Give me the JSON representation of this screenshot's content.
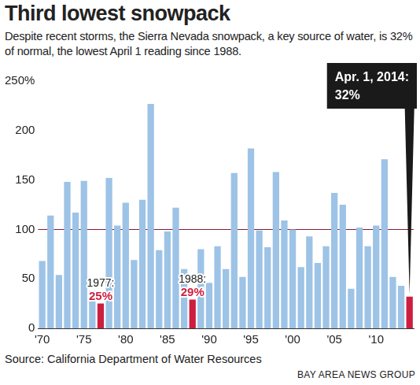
{
  "chart_data": {
    "type": "bar",
    "title": "Third lowest snowpack",
    "subtitle": "Despite recent storms, the Sierra Nevada snowpack, a key source of water, is 32% of normal, the lowest April 1 reading since 1988.",
    "source": "Source: California Department of Water Resources",
    "credit": "BAY AREA NEWS GROUP",
    "x": [
      1970,
      1971,
      1972,
      1973,
      1974,
      1975,
      1976,
      1977,
      1978,
      1979,
      1980,
      1981,
      1982,
      1983,
      1984,
      1985,
      1986,
      1987,
      1988,
      1989,
      1990,
      1991,
      1992,
      1993,
      1994,
      1995,
      1996,
      1997,
      1998,
      1999,
      2000,
      2001,
      2002,
      2003,
      2004,
      2005,
      2006,
      2007,
      2008,
      2009,
      2010,
      2011,
      2012,
      2013,
      2014
    ],
    "values": [
      68,
      114,
      54,
      148,
      117,
      149,
      38,
      25,
      152,
      104,
      127,
      69,
      130,
      227,
      79,
      98,
      122,
      60,
      29,
      80,
      46,
      83,
      60,
      157,
      52,
      182,
      99,
      82,
      158,
      109,
      100,
      62,
      93,
      66,
      83,
      137,
      125,
      40,
      102,
      83,
      104,
      171,
      52,
      43,
      32
    ],
    "colors": [
      "#9dc3e6",
      "#9dc3e6",
      "#9dc3e6",
      "#9dc3e6",
      "#9dc3e6",
      "#9dc3e6",
      "#9dc3e6",
      "#cc1f3f",
      "#9dc3e6",
      "#9dc3e6",
      "#9dc3e6",
      "#9dc3e6",
      "#9dc3e6",
      "#9dc3e6",
      "#9dc3e6",
      "#9dc3e6",
      "#9dc3e6",
      "#9dc3e6",
      "#cc1f3f",
      "#9dc3e6",
      "#9dc3e6",
      "#9dc3e6",
      "#9dc3e6",
      "#9dc3e6",
      "#9dc3e6",
      "#9dc3e6",
      "#9dc3e6",
      "#9dc3e6",
      "#9dc3e6",
      "#9dc3e6",
      "#9dc3e6",
      "#9dc3e6",
      "#9dc3e6",
      "#9dc3e6",
      "#9dc3e6",
      "#9dc3e6",
      "#9dc3e6",
      "#9dc3e6",
      "#9dc3e6",
      "#9dc3e6",
      "#9dc3e6",
      "#9dc3e6",
      "#9dc3e6",
      "#9dc3e6",
      "#cc1f3f"
    ],
    "xlim": [
      1969.5,
      2014.5
    ],
    "xticks": [
      {
        "value": 1970,
        "label": "'70"
      },
      {
        "value": 1975,
        "label": "'75"
      },
      {
        "value": 1980,
        "label": "'80"
      },
      {
        "value": 1985,
        "label": "'85"
      },
      {
        "value": 1990,
        "label": "'90"
      },
      {
        "value": 1995,
        "label": "'95"
      },
      {
        "value": 2000,
        "label": "'00"
      },
      {
        "value": 2005,
        "label": "'05"
      },
      {
        "value": 2010,
        "label": "'10"
      }
    ],
    "ylim": [
      0,
      250
    ],
    "yticks": [
      0,
      50,
      100,
      150,
      200,
      {
        "value": 250,
        "label": "250%"
      }
    ],
    "reference_line": 100,
    "annotations": [
      {
        "x": 1977,
        "text": "1977:",
        "value_label": "25%"
      },
      {
        "x": 1988,
        "text": "1988:",
        "value_label": "29%"
      },
      {
        "x": 2014,
        "text": "Apr. 1, 2014:",
        "value_label": "32%"
      }
    ],
    "grid": false
  }
}
